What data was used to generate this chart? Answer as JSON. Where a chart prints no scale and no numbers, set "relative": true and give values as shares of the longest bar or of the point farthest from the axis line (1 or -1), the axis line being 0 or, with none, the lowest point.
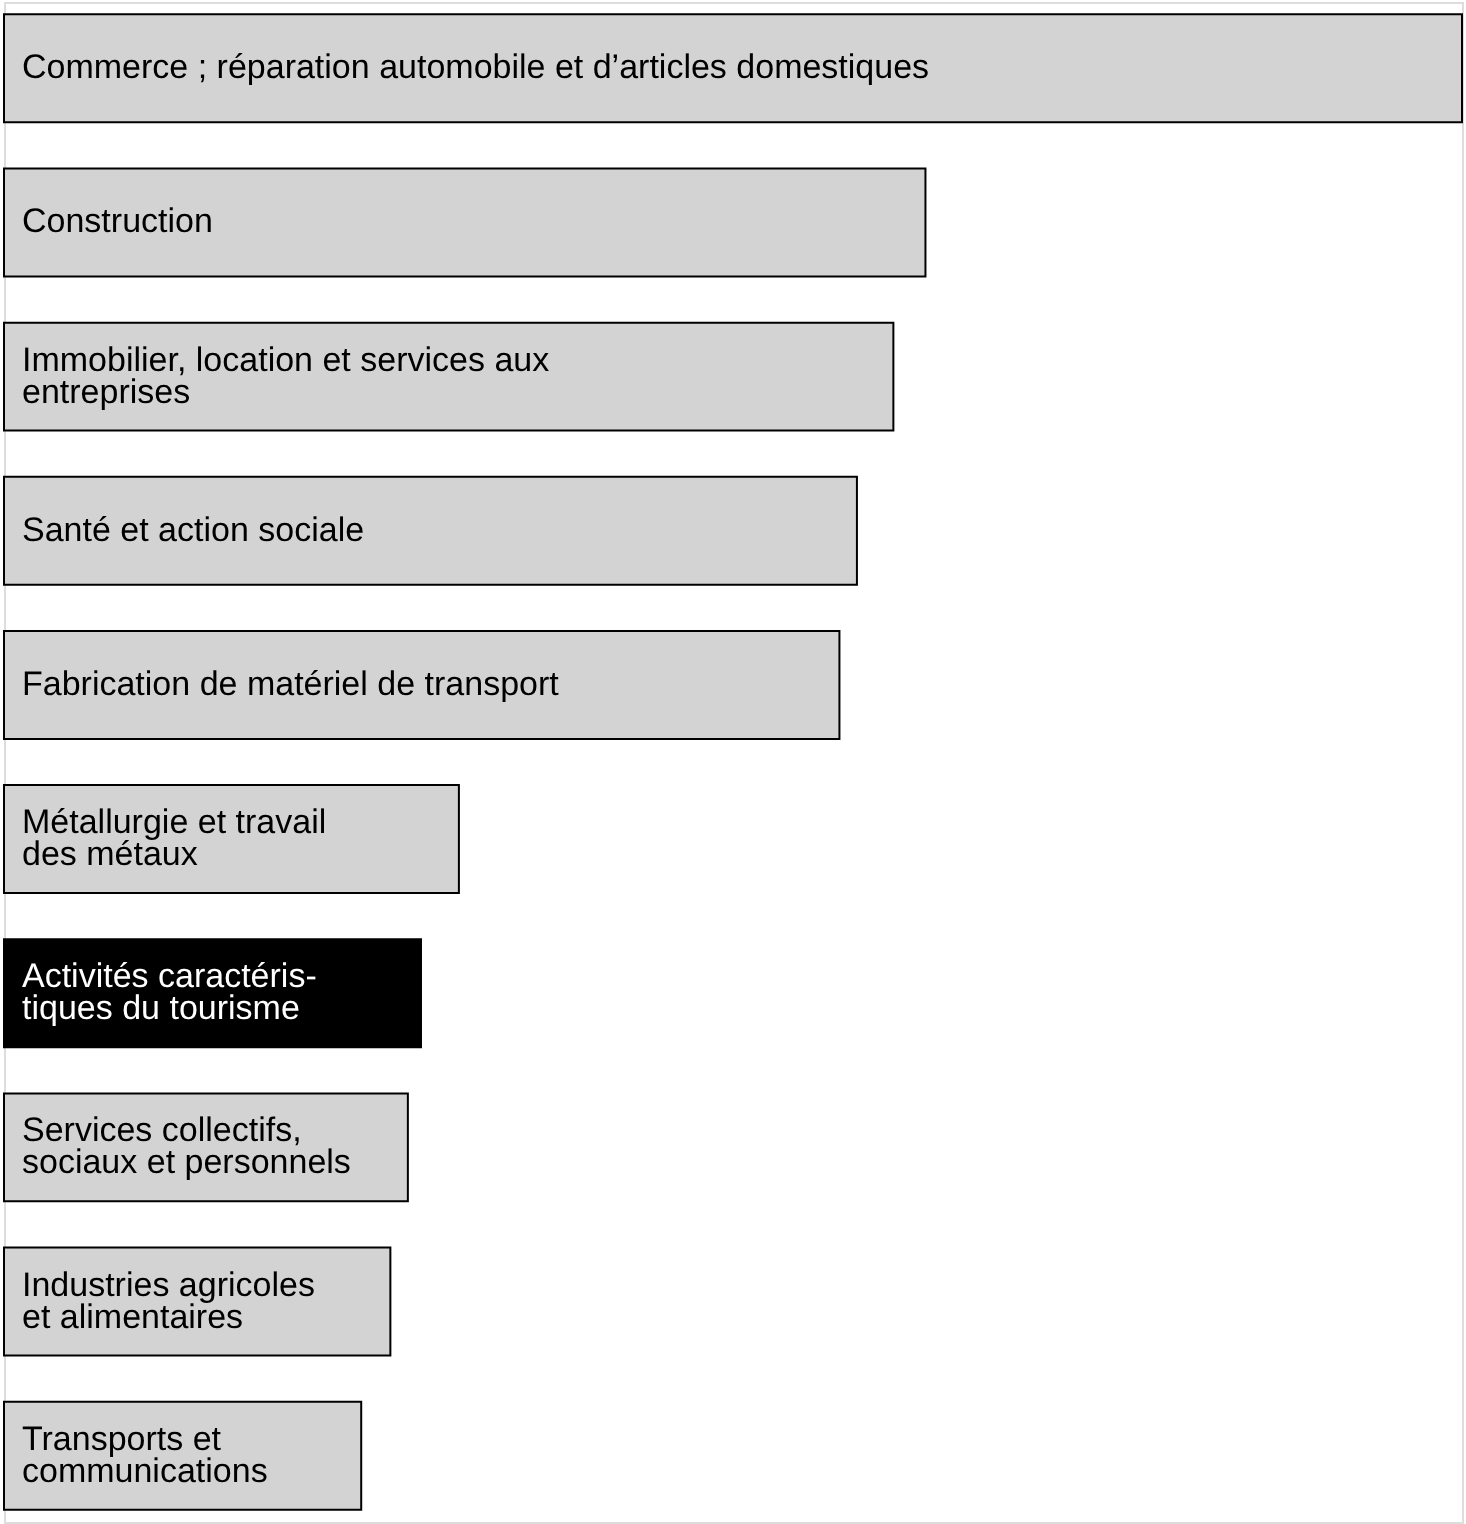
{
  "chart_data": {
    "type": "bar",
    "orientation": "horizontal",
    "relative": true,
    "categories": [
      "Commerce ; réparation automobile et d’articles domestiques",
      "Construction",
      "Immobilier, location et services aux\nentreprises",
      "Santé et action sociale",
      "Fabrication de matériel de transport",
      "Métallurgie et travail\ndes métaux",
      "Activités caractéris-\ntiques du tourisme",
      "Services collectifs,\nsociaux et personnels",
      "Industries agricoles\net alimentaires",
      "Transports et\ncommunications"
    ],
    "values": [
      1.0,
      0.632,
      0.61,
      0.585,
      0.573,
      0.312,
      0.286,
      0.277,
      0.265,
      0.245
    ],
    "colors": [
      "#d3d3d3",
      "#d3d3d3",
      "#d3d3d3",
      "#d3d3d3",
      "#d3d3d3",
      "#d3d3d3",
      "#000000",
      "#d3d3d3",
      "#d3d3d3",
      "#d3d3d3"
    ]
  }
}
